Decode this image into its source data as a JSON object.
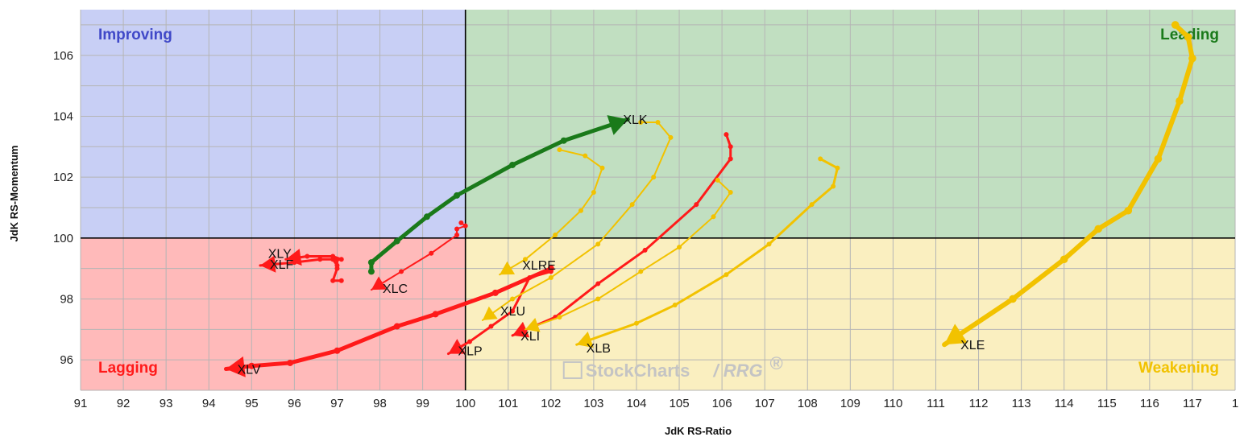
{
  "chart_data": {
    "type": "scatter",
    "title": "",
    "xlabel": "JdK RS-Ratio",
    "ylabel": "JdK RS-Momentum",
    "xlim": [
      91,
      118
    ],
    "ylim": [
      95,
      107.5
    ],
    "x_ticks": [
      "91",
      "92",
      "93",
      "94",
      "95",
      "96",
      "97",
      "98",
      "99",
      "100",
      "101",
      "102",
      "103",
      "104",
      "105",
      "106",
      "107",
      "108",
      "109",
      "110",
      "111",
      "112",
      "113",
      "114",
      "115",
      "116",
      "117",
      "1"
    ],
    "y_ticks": [
      "96",
      "98",
      "100",
      "102",
      "104",
      "106"
    ],
    "center": [
      100,
      100
    ],
    "grid": true,
    "quadrants": [
      {
        "name": "Improving",
        "color": "#4049c8",
        "fill": "#c8cff5"
      },
      {
        "name": "Leading",
        "color": "#1a7a1a",
        "fill": "#c1dfc1"
      },
      {
        "name": "Lagging",
        "color": "#ff1a1a",
        "fill": "#ffbaba"
      },
      {
        "name": "Weakening",
        "color": "#f2c200",
        "fill": "#faefc0"
      }
    ],
    "watermark": {
      "brand": "StockCharts",
      "product": "/ RRG",
      "mark": "®"
    },
    "series": [
      {
        "name": "XLE",
        "color": "#f2c200",
        "width": 6,
        "points": [
          [
            116.6,
            107.0
          ],
          [
            116.9,
            106.6
          ],
          [
            117.0,
            105.9
          ],
          [
            116.7,
            104.5
          ],
          [
            116.2,
            102.6
          ],
          [
            115.5,
            100.9
          ],
          [
            114.8,
            100.3
          ],
          [
            114.0,
            99.3
          ],
          [
            112.8,
            98.0
          ],
          [
            111.2,
            96.5
          ]
        ]
      },
      {
        "name": "XLK",
        "color": "#1a7a1a",
        "width": 5,
        "points": [
          [
            97.8,
            98.9
          ],
          [
            97.8,
            99.2
          ],
          [
            98.4,
            99.9
          ],
          [
            99.1,
            100.7
          ],
          [
            99.8,
            101.4
          ],
          [
            101.1,
            102.4
          ],
          [
            102.3,
            103.2
          ],
          [
            103.8,
            103.9
          ]
        ]
      },
      {
        "name": "XLI",
        "color": "#ff1a1a",
        "width": 3,
        "points": [
          [
            106.1,
            103.4
          ],
          [
            106.2,
            103.0
          ],
          [
            106.2,
            102.6
          ],
          [
            105.4,
            101.1
          ],
          [
            104.2,
            99.6
          ],
          [
            103.1,
            98.5
          ],
          [
            102.1,
            97.4
          ],
          [
            101.1,
            96.8
          ]
        ]
      },
      {
        "name": "XLC",
        "color": "#ff1a1a",
        "width": 2,
        "points": [
          [
            99.9,
            100.5
          ],
          [
            100.0,
            100.4
          ],
          [
            99.8,
            100.3
          ],
          [
            99.8,
            100.1
          ],
          [
            99.2,
            99.5
          ],
          [
            98.5,
            98.9
          ],
          [
            97.8,
            98.3
          ]
        ]
      },
      {
        "name": "XLY",
        "color": "#ff1a1a",
        "width": 3,
        "points": [
          [
            97.1,
            98.6
          ],
          [
            96.9,
            98.6
          ],
          [
            97.0,
            99.0
          ],
          [
            97.0,
            99.3
          ],
          [
            97.1,
            99.3
          ],
          [
            96.9,
            99.4
          ],
          [
            96.3,
            99.4
          ],
          [
            95.8,
            99.3
          ]
        ]
      },
      {
        "name": "XLF",
        "color": "#ff1a1a",
        "width": 3,
        "points": [
          [
            97.0,
            99.3
          ],
          [
            97.0,
            99.1
          ],
          [
            96.9,
            99.3
          ],
          [
            96.6,
            99.3
          ],
          [
            96.0,
            99.2
          ],
          [
            95.2,
            99.1
          ]
        ]
      },
      {
        "name": "XLV",
        "color": "#ff1a1a",
        "width": 5,
        "points": [
          [
            102.0,
            99.0
          ],
          [
            100.7,
            98.2
          ],
          [
            99.3,
            97.5
          ],
          [
            98.4,
            97.1
          ],
          [
            97.0,
            96.3
          ],
          [
            95.9,
            95.9
          ],
          [
            95.0,
            95.8
          ],
          [
            94.4,
            95.7
          ]
        ]
      },
      {
        "name": "XLP",
        "color": "#ff1a1a",
        "width": 3,
        "points": [
          [
            102.0,
            98.9
          ],
          [
            101.5,
            98.7
          ],
          [
            101.1,
            97.6
          ],
          [
            100.6,
            97.1
          ],
          [
            100.1,
            96.6
          ],
          [
            99.6,
            96.2
          ]
        ]
      },
      {
        "name": "XLRE",
        "color": "#f2c200",
        "width": 2,
        "points": [
          [
            102.2,
            102.9
          ],
          [
            102.8,
            102.7
          ],
          [
            103.2,
            102.3
          ],
          [
            103.0,
            101.5
          ],
          [
            102.7,
            100.9
          ],
          [
            102.1,
            100.1
          ],
          [
            101.4,
            99.3
          ],
          [
            100.8,
            98.8
          ]
        ]
      },
      {
        "name": "XLU",
        "color": "#f2c200",
        "width": 2,
        "points": [
          [
            104.1,
            103.8
          ],
          [
            104.5,
            103.8
          ],
          [
            104.8,
            103.3
          ],
          [
            104.4,
            102.0
          ],
          [
            103.9,
            101.1
          ],
          [
            103.1,
            99.8
          ],
          [
            102.0,
            98.7
          ],
          [
            101.1,
            98.0
          ],
          [
            100.4,
            97.3
          ]
        ]
      },
      {
        "name": "XLB",
        "color": "#f2c200",
        "width": 2,
        "points": [
          [
            105.9,
            101.9
          ],
          [
            106.2,
            101.5
          ],
          [
            105.8,
            100.7
          ],
          [
            105.0,
            99.7
          ],
          [
            104.1,
            98.9
          ],
          [
            103.1,
            98.0
          ],
          [
            102.2,
            97.4
          ],
          [
            101.4,
            97.0
          ]
        ]
      },
      {
        "name": "XLE_lbl_helper",
        "color": "#f2c200",
        "width": 0,
        "points": []
      },
      {
        "name": "XLB2",
        "color": "#f2c200",
        "width": 3,
        "points": [
          [
            108.3,
            102.6
          ],
          [
            108.7,
            102.3
          ],
          [
            108.6,
            101.7
          ],
          [
            108.1,
            101.1
          ],
          [
            107.1,
            99.8
          ],
          [
            106.1,
            98.8
          ],
          [
            104.9,
            97.8
          ],
          [
            104.0,
            97.2
          ],
          [
            102.6,
            96.5
          ]
        ]
      }
    ],
    "labels": [
      {
        "text": "XLE",
        "series": "XLE"
      },
      {
        "text": "XLK",
        "series": "XLK"
      },
      {
        "text": "XLI",
        "series": "XLI"
      },
      {
        "text": "XLC",
        "series": "XLC"
      },
      {
        "text": "XLY",
        "series": "XLY"
      },
      {
        "text": "XLF",
        "series": "XLF"
      },
      {
        "text": "XLV",
        "series": "XLV"
      },
      {
        "text": "XLP",
        "series": "XLP"
      },
      {
        "text": "XLRE",
        "series": "XLRE"
      },
      {
        "text": "XLU",
        "series": "XLU"
      },
      {
        "text": "XLB",
        "series": "XLB2"
      }
    ]
  }
}
